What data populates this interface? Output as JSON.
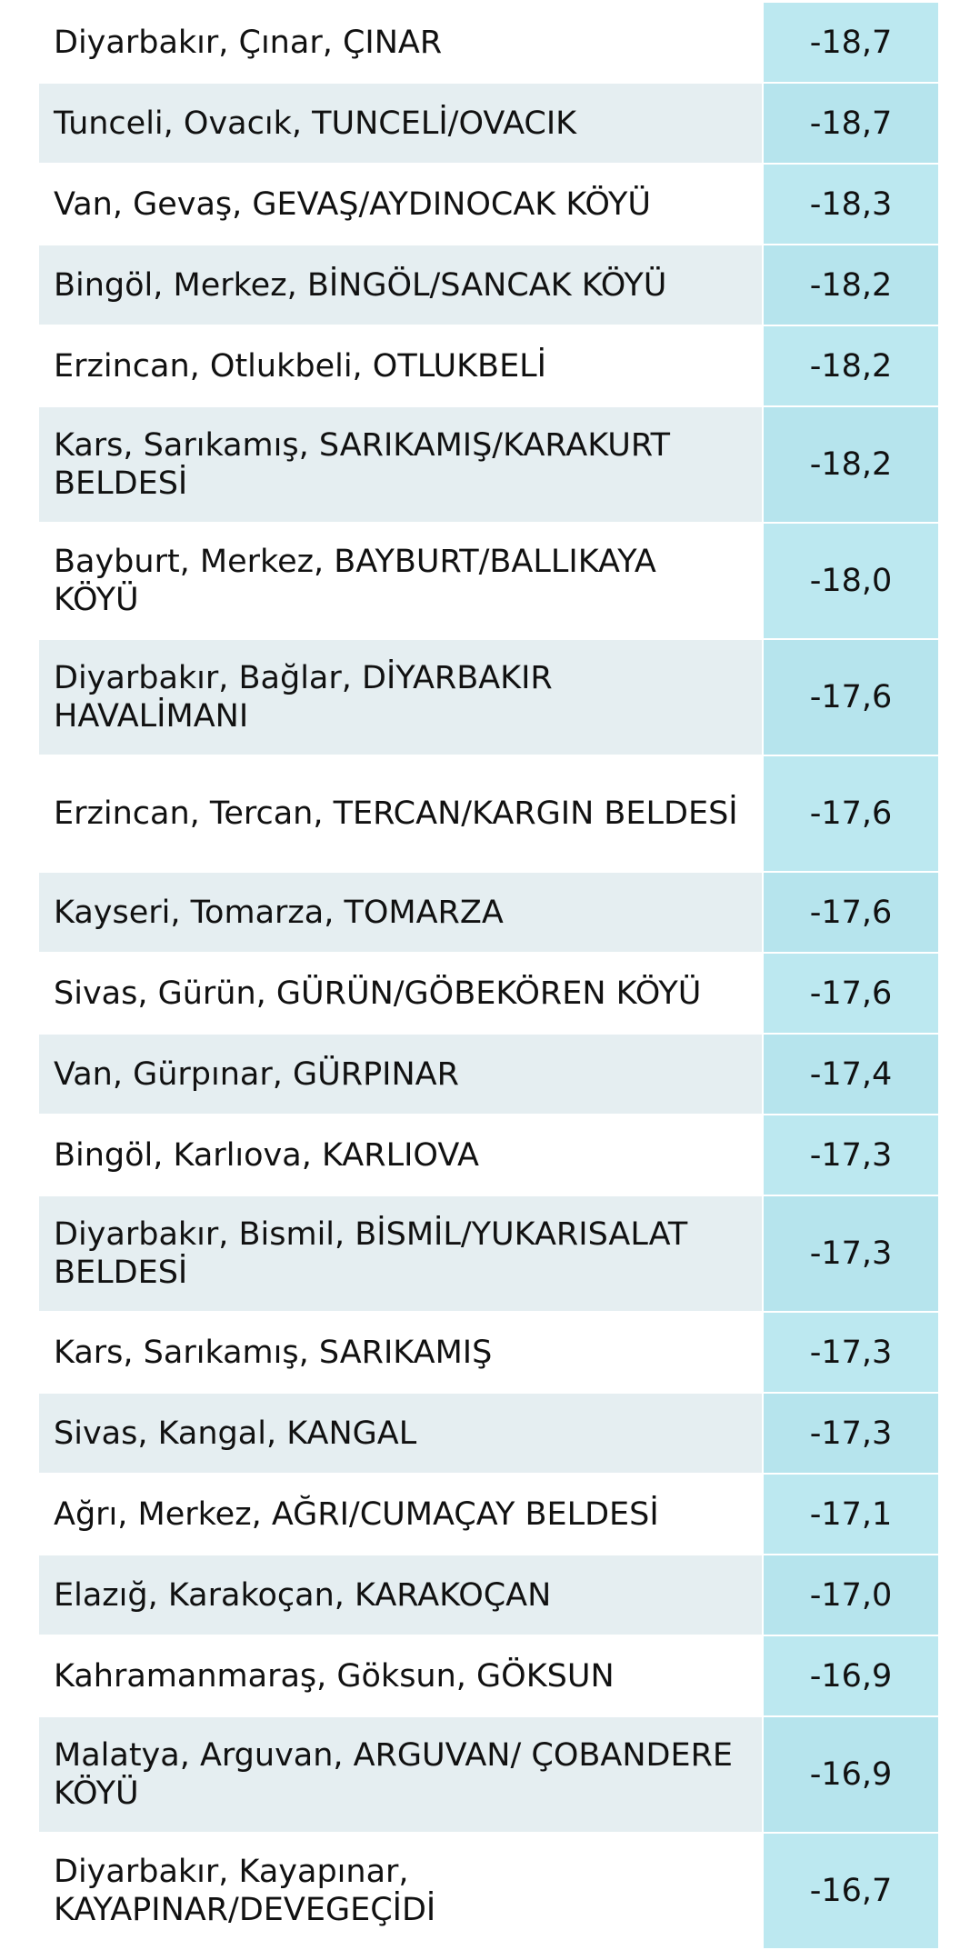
{
  "table": {
    "rows": [
      [
        "Diyarbakır, Çınar, ÇINAR",
        "-18,7"
      ],
      [
        "Tunceli, Ovacık, TUNCELİ/OVACIK",
        "-18,7"
      ],
      [
        "Van, Gevaş, GEVAŞ/AYDINOCAK KÖYÜ",
        "-18,3"
      ],
      [
        "Bingöl, Merkez, BİNGÖL/SANCAK KÖYÜ",
        "-18,2"
      ],
      [
        "Erzincan, Otlukbeli, OTLUKBELİ",
        "-18,2"
      ],
      [
        "Kars, Sarıkamış, SARIKAMIŞ/KARAKURT BELDESİ",
        "-18,2"
      ],
      [
        "Bayburt, Merkez, BAYBURT/BALLIKAYA KÖYÜ",
        "-18,0"
      ],
      [
        "Diyarbakır, Bağlar, DİYARBAKIR HAVALİMANI",
        "-17,6"
      ],
      [
        "Erzincan, Tercan, TERCAN/KARGIN BELDESİ",
        "-17,6"
      ],
      [
        "Kayseri, Tomarza, TOMARZA",
        "-17,6"
      ],
      [
        "Sivas, Gürün, GÜRÜN/GÖBEKÖREN KÖYÜ",
        "-17,6"
      ],
      [
        "Van, Gürpınar, GÜRPINAR",
        "-17,4"
      ],
      [
        "Bingöl, Karlıova, KARLIOVA",
        "-17,3"
      ],
      [
        "Diyarbakır, Bismil, BİSMİL/YUKARISALAT BELDESİ",
        "-17,3"
      ],
      [
        "Kars, Sarıkamış, SARIKAMIŞ",
        "-17,3"
      ],
      [
        "Sivas, Kangal, KANGAL",
        "-17,3"
      ],
      [
        "Ağrı, Merkez, AĞRI/CUMAÇAY BELDESİ",
        "-17,1"
      ],
      [
        "Elazığ, Karakoçan, KARAKOÇAN",
        "-17,0"
      ],
      [
        "Kahramanmaraş, Göksun, GÖKSUN",
        "-16,9"
      ],
      [
        "Malatya, Arguvan, ARGUVAN/ ÇOBANDERE KÖYÜ",
        "-16,9"
      ],
      [
        "Diyarbakır, Kayapınar, KAYAPINAR/DEVEGEÇİDİ",
        "-16,7"
      ]
    ]
  }
}
